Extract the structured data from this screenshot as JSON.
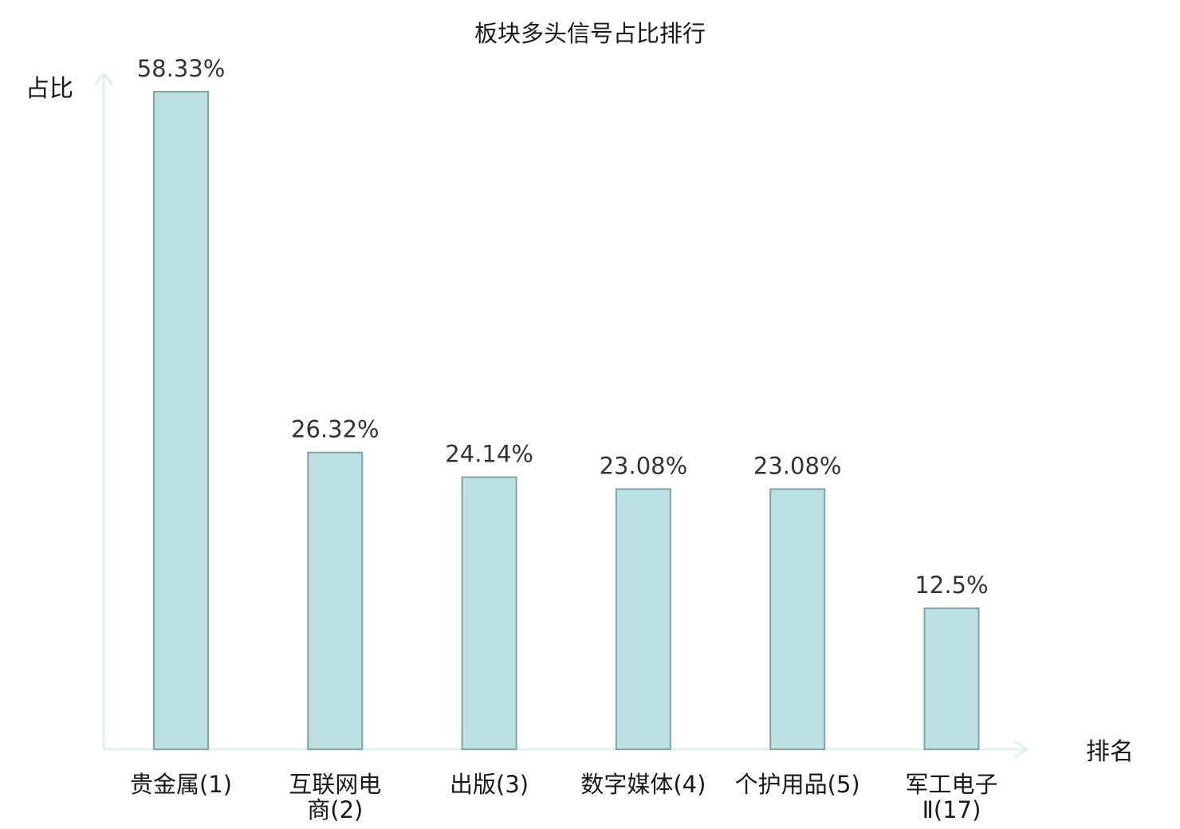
{
  "chart_data": {
    "type": "bar",
    "title": "板块多头信号占比排行",
    "ylabel": "占比",
    "xlabel": "排名",
    "categories": [
      [
        "贵金属(1)"
      ],
      [
        "互联网电",
        "商(2)"
      ],
      [
        "出版(3)"
      ],
      [
        "数字媒体(4)"
      ],
      [
        "个护用品(5)"
      ],
      [
        "军工电子",
        "Ⅱ(17)"
      ]
    ],
    "values": [
      58.33,
      26.32,
      24.14,
      23.08,
      23.08,
      12.5
    ],
    "value_labels": [
      "58.33%",
      "26.32%",
      "24.14%",
      "23.08%",
      "23.08%",
      "12.5%"
    ],
    "highlight_index": 5,
    "ylim": [
      0,
      58.33
    ],
    "grid": false
  },
  "colors": {
    "bar_fill": "#bde0e3",
    "bar_stroke": "#7fa3a7",
    "axis": "#dff1ef",
    "highlight_text": "#e8141b",
    "text": "#1a1a1a"
  }
}
